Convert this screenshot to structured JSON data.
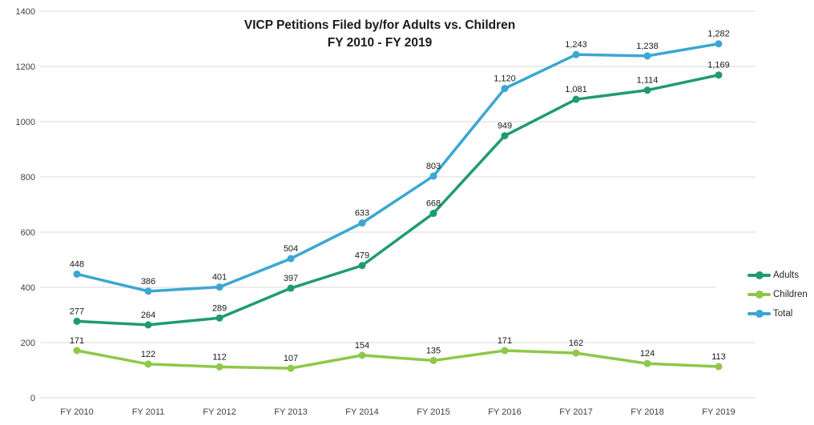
{
  "title": {
    "line1": "VICP Petitions Filed by/for Adults vs. Children",
    "line2": "FY 2010 - FY 2019"
  },
  "chart_data": {
    "type": "line",
    "title": "VICP Petitions Filed by/for Adults vs. Children FY 2010 - FY 2019",
    "categories": [
      "FY 2010",
      "FY 2011",
      "FY 2012",
      "FY 2013",
      "FY 2014",
      "FY 2015",
      "FY 2016",
      "FY 2017",
      "FY 2018",
      "FY 2019"
    ],
    "series": [
      {
        "name": "Adults",
        "color": "#1F9B70",
        "values": [
          277,
          264,
          289,
          397,
          479,
          668,
          949,
          1081,
          1114,
          1169
        ],
        "labels": [
          "277",
          "264",
          "289",
          "397",
          "479",
          "668",
          "949",
          "1,081",
          "1,114",
          "1,169"
        ]
      },
      {
        "name": "Children",
        "color": "#8EC849",
        "values": [
          171,
          122,
          112,
          107,
          154,
          135,
          171,
          162,
          124,
          113
        ],
        "labels": [
          "171",
          "122",
          "112",
          "107",
          "154",
          "135",
          "171",
          "162",
          "124",
          "113"
        ]
      },
      {
        "name": "Total",
        "color": "#3BA7D2",
        "values": [
          448,
          386,
          401,
          504,
          633,
          803,
          1120,
          1243,
          1238,
          1282
        ],
        "labels": [
          "448",
          "386",
          "401",
          "504",
          "633",
          "803",
          "1,120",
          "1,243",
          "1,238",
          "1,282"
        ]
      }
    ],
    "y_axis": {
      "min": 0,
      "max": 1400,
      "step": 200,
      "tick_labels": [
        "0",
        "200",
        "400",
        "600",
        "800",
        "1000",
        "1200",
        "1400"
      ]
    },
    "xlabel": "",
    "ylabel": "",
    "grid": true,
    "legend_position": "right"
  },
  "colors": {
    "background": "#FFFFFF",
    "gridline": "#D9D9D9",
    "axis_text": "#404040",
    "data_label": "#1A1A1A",
    "title_text": "#1A1A1A"
  }
}
